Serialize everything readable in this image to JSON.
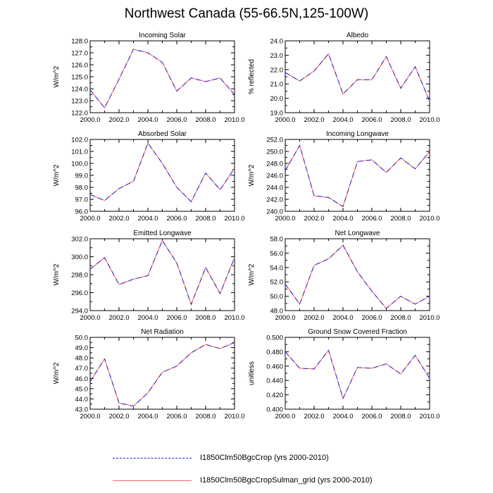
{
  "title": "Northwest Canada (55-66.5N,125-100W)",
  "colors": {
    "series1": "#2222cc",
    "series2": "#ff5f5f"
  },
  "legend": [
    {
      "label": "I1850Clm50BgcCrop (yrs 2000-2010)",
      "style": "dashed",
      "color": "#2222cc"
    },
    {
      "label": "I1850Clm50BgcCropSulman_grid (yrs 2000-2010)",
      "style": "solid",
      "color": "#ff5f5f"
    }
  ],
  "chart_data": [
    {
      "type": "line",
      "title": "Incoming Solar",
      "ylabel": "W/m^2",
      "x": [
        2000,
        2001,
        2002,
        2003,
        2004,
        2005,
        2006,
        2007,
        2008,
        2009,
        2010
      ],
      "xticks": [
        "2000.0",
        "2002.0",
        "2004.0",
        "2006.0",
        "2008.0",
        "2010.0"
      ],
      "ylim": [
        122.0,
        128.0
      ],
      "yticks": [
        "122.0",
        "123.0",
        "124.0",
        "125.0",
        "126.0",
        "127.0",
        "128.0"
      ],
      "values": [
        123.9,
        122.4,
        124.8,
        127.3,
        127.0,
        126.2,
        123.8,
        124.9,
        124.6,
        124.9,
        123.5
      ]
    },
    {
      "type": "line",
      "title": "Albedo",
      "ylabel": "% reflected",
      "x": [
        2000,
        2001,
        2002,
        2003,
        2004,
        2005,
        2006,
        2007,
        2008,
        2009,
        2010
      ],
      "xticks": [
        "2000.0",
        "2002.0",
        "2004.0",
        "2006.0",
        "2008.0",
        "2010.0"
      ],
      "ylim": [
        19.0,
        24.0
      ],
      "yticks": [
        "19.0",
        "20.0",
        "21.0",
        "22.0",
        "23.0",
        "24.0"
      ],
      "values": [
        21.8,
        21.2,
        21.9,
        23.1,
        20.3,
        21.3,
        21.3,
        22.9,
        20.7,
        22.2,
        19.8
      ]
    },
    {
      "type": "line",
      "title": "Absorbed Solar",
      "ylabel": "W/m^2",
      "x": [
        2000,
        2001,
        2002,
        2003,
        2004,
        2005,
        2006,
        2007,
        2008,
        2009,
        2010
      ],
      "xticks": [
        "2000.0",
        "2002.0",
        "2004.0",
        "2006.0",
        "2008.0",
        "2010.0"
      ],
      "ylim": [
        96.0,
        102.0
      ],
      "yticks": [
        "96.0",
        "97.0",
        "98.0",
        "99.0",
        "100.0",
        "101.0",
        "102.0"
      ],
      "values": [
        97.4,
        96.9,
        97.9,
        98.5,
        101.7,
        100.0,
        98.0,
        96.8,
        99.2,
        97.8,
        99.6
      ]
    },
    {
      "type": "line",
      "title": "Incoming Longwave",
      "ylabel": "W/m^2",
      "x": [
        2000,
        2001,
        2002,
        2003,
        2004,
        2005,
        2006,
        2007,
        2008,
        2009,
        2010
      ],
      "xticks": [
        "2000.0",
        "2002.0",
        "2004.0",
        "2006.0",
        "2008.0",
        "2010.0"
      ],
      "ylim": [
        240.0,
        252.0
      ],
      "yticks": [
        "240.0",
        "242.0",
        "244.0",
        "246.0",
        "248.0",
        "250.0",
        "252.0"
      ],
      "values": [
        246.8,
        251.0,
        242.6,
        242.3,
        240.8,
        248.3,
        248.6,
        246.5,
        248.9,
        247.1,
        250.0
      ]
    },
    {
      "type": "line",
      "title": "Emitted Longwave",
      "ylabel": "W/m^2",
      "x": [
        2000,
        2001,
        2002,
        2003,
        2004,
        2005,
        2006,
        2007,
        2008,
        2009,
        2010
      ],
      "xticks": [
        "2000.0",
        "2002.0",
        "2004.0",
        "2006.0",
        "2008.0",
        "2010.0"
      ],
      "ylim": [
        294.0,
        302.0
      ],
      "yticks": [
        "294.0",
        "296.0",
        "298.0",
        "300.0",
        "302.0"
      ],
      "values": [
        298.6,
        299.9,
        296.9,
        297.5,
        297.9,
        301.8,
        299.3,
        294.7,
        298.8,
        295.9,
        299.9
      ]
    },
    {
      "type": "line",
      "title": "Net Longwave",
      "ylabel": "W/m^2",
      "x": [
        2000,
        2001,
        2002,
        2003,
        2004,
        2005,
        2006,
        2007,
        2008,
        2009,
        2010
      ],
      "xticks": [
        "2000.0",
        "2002.0",
        "2004.0",
        "2006.0",
        "2008.0",
        "2010.0"
      ],
      "ylim": [
        48.0,
        58.0
      ],
      "yticks": [
        "48.0",
        "50.0",
        "52.0",
        "54.0",
        "56.0",
        "58.0"
      ],
      "values": [
        51.7,
        48.9,
        54.3,
        55.2,
        57.1,
        53.4,
        50.7,
        48.3,
        50.0,
        48.9,
        50.0
      ]
    },
    {
      "type": "line",
      "title": "Net Radiation",
      "ylabel": "W/m^2",
      "x": [
        2000,
        2001,
        2002,
        2003,
        2004,
        2005,
        2006,
        2007,
        2008,
        2009,
        2010
      ],
      "xticks": [
        "2000.0",
        "2002.0",
        "2004.0",
        "2006.0",
        "2008.0",
        "2010.0"
      ],
      "ylim": [
        43.0,
        50.0
      ],
      "yticks": [
        "43.0",
        "44.0",
        "45.0",
        "46.0",
        "47.0",
        "48.0",
        "49.0",
        "50.0"
      ],
      "values": [
        45.7,
        47.9,
        43.6,
        43.3,
        44.6,
        46.6,
        47.2,
        48.5,
        49.3,
        48.9,
        49.5
      ]
    },
    {
      "type": "line",
      "title": "Ground Snow Covered Fraction",
      "ylabel": "unitless",
      "x": [
        2000,
        2001,
        2002,
        2003,
        2004,
        2005,
        2006,
        2007,
        2008,
        2009,
        2010
      ],
      "xticks": [
        "2000.0",
        "2002.0",
        "2004.0",
        "2006.0",
        "2008.0",
        "2010.0"
      ],
      "ylim": [
        0.4,
        0.5
      ],
      "yticks": [
        "0.400",
        "0.420",
        "0.440",
        "0.460",
        "0.480",
        "0.500"
      ],
      "values": [
        0.48,
        0.457,
        0.456,
        0.482,
        0.415,
        0.458,
        0.457,
        0.463,
        0.449,
        0.475,
        0.443
      ]
    }
  ]
}
